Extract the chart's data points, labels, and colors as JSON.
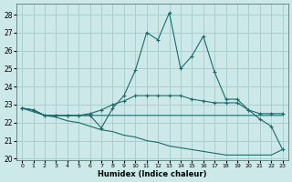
{
  "xlabel": "Humidex (Indice chaleur)",
  "background_color": "#cde8e8",
  "grid_color": "#aacfcf",
  "line_color": "#1a6b6b",
  "xlim": [
    -0.5,
    23.5
  ],
  "ylim": [
    19.9,
    28.6
  ],
  "yticks": [
    20,
    21,
    22,
    23,
    24,
    25,
    26,
    27,
    28
  ],
  "xticks": [
    0,
    1,
    2,
    3,
    4,
    5,
    6,
    7,
    8,
    9,
    10,
    11,
    12,
    13,
    14,
    15,
    16,
    17,
    18,
    19,
    20,
    21,
    22,
    23
  ],
  "series": [
    {
      "x": [
        0,
        1,
        2,
        3,
        4,
        5,
        6,
        7,
        8,
        9,
        10,
        11,
        12,
        13,
        14,
        15,
        16,
        17,
        18,
        19,
        20,
        21,
        22,
        23
      ],
      "y": [
        22.8,
        22.7,
        22.4,
        22.4,
        22.4,
        22.4,
        22.4,
        21.7,
        22.8,
        23.5,
        24.9,
        27.0,
        26.6,
        28.1,
        25.0,
        25.7,
        26.8,
        24.8,
        23.3,
        23.3,
        22.7,
        22.2,
        21.8,
        20.5
      ],
      "marker": true
    },
    {
      "x": [
        0,
        1,
        2,
        3,
        4,
        5,
        6,
        7,
        8,
        9,
        10,
        11,
        12,
        13,
        14,
        15,
        16,
        17,
        18,
        19,
        20,
        21,
        22,
        23
      ],
      "y": [
        22.8,
        22.7,
        22.4,
        22.4,
        22.4,
        22.4,
        22.5,
        22.7,
        23.0,
        23.2,
        23.5,
        23.5,
        23.5,
        23.5,
        23.5,
        23.3,
        23.2,
        23.1,
        23.1,
        23.1,
        22.7,
        22.5,
        22.5,
        22.5
      ],
      "marker": true
    },
    {
      "x": [
        0,
        1,
        2,
        3,
        4,
        5,
        6,
        7,
        8,
        9,
        10,
        11,
        12,
        13,
        14,
        15,
        16,
        17,
        18,
        19,
        20,
        21,
        22,
        23
      ],
      "y": [
        22.8,
        22.7,
        22.4,
        22.4,
        22.4,
        22.4,
        22.4,
        22.4,
        22.4,
        22.4,
        22.4,
        22.4,
        22.4,
        22.4,
        22.4,
        22.4,
        22.4,
        22.4,
        22.4,
        22.4,
        22.4,
        22.4,
        22.4,
        22.4
      ],
      "marker": false
    },
    {
      "x": [
        0,
        1,
        2,
        3,
        4,
        5,
        6,
        7,
        8,
        9,
        10,
        11,
        12,
        13,
        14,
        15,
        16,
        17,
        18,
        19,
        20,
        21,
        22,
        23
      ],
      "y": [
        22.8,
        22.6,
        22.4,
        22.3,
        22.1,
        22.0,
        21.8,
        21.6,
        21.5,
        21.3,
        21.2,
        21.0,
        20.9,
        20.7,
        20.6,
        20.5,
        20.4,
        20.3,
        20.2,
        20.2,
        20.2,
        20.2,
        20.2,
        20.5
      ],
      "marker": false
    }
  ]
}
